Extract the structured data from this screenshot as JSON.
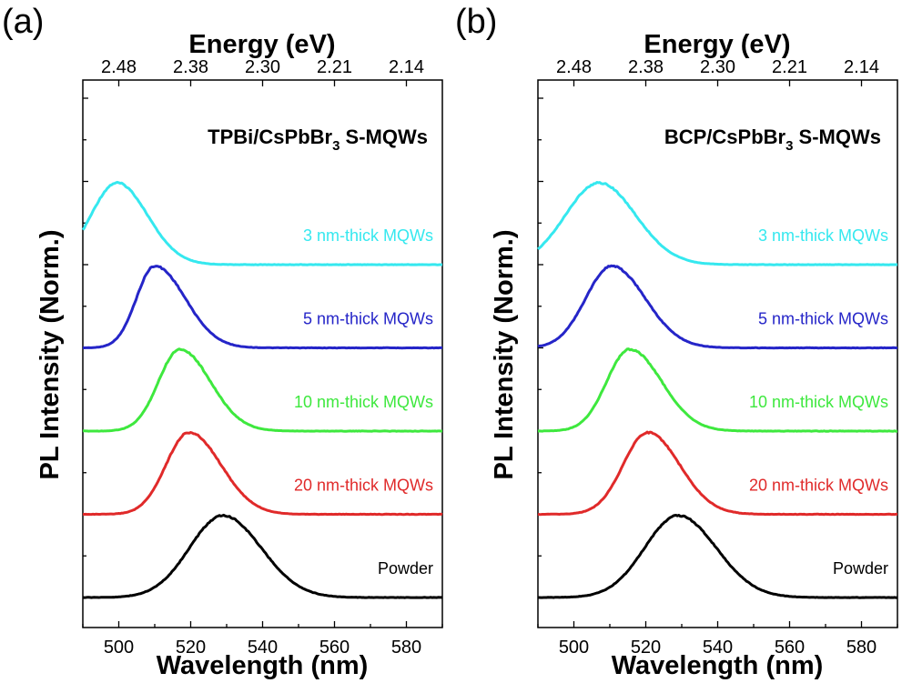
{
  "panels": [
    {
      "label": "(a)",
      "title_main": "TPBi/CsPbBr",
      "title_sub": "3",
      "title_suffix": " S-MQWs",
      "chart_data": {
        "type": "line",
        "xlabel": "Wavelength (nm)",
        "ylabel": "PL Intensity (Norm.)",
        "top_xlabel": "Energy (eV)",
        "xlim": [
          490,
          590
        ],
        "x_ticks": [
          500,
          520,
          540,
          560,
          580
        ],
        "top_ticks": [
          {
            "wavelength": 500,
            "label": "2.48"
          },
          {
            "wavelength": 520,
            "label": "2.38"
          },
          {
            "wavelength": 540,
            "label": "2.30"
          },
          {
            "wavelength": 560,
            "label": "2.21"
          },
          {
            "wavelength": 580,
            "label": "2.14"
          }
        ],
        "series": [
          {
            "name": "3 nm-thick MQWs",
            "color": "#35e8ef",
            "peak_nm": 499.5,
            "fwhm_left": 17,
            "fwhm_right": 20,
            "offset": 4
          },
          {
            "name": "5 nm-thick MQWs",
            "color": "#2525c8",
            "peak_nm": 510,
            "fwhm_left": 12,
            "fwhm_right": 20,
            "offset": 3
          },
          {
            "name": "10 nm-thick MQWs",
            "color": "#3ee83e",
            "peak_nm": 517,
            "fwhm_left": 14,
            "fwhm_right": 20,
            "offset": 2
          },
          {
            "name": "20 nm-thick MQWs",
            "color": "#e02a2a",
            "peak_nm": 519.5,
            "fwhm_left": 15,
            "fwhm_right": 21,
            "offset": 1
          },
          {
            "name": "Powder",
            "color": "#000000",
            "peak_nm": 529,
            "fwhm_left": 22,
            "fwhm_right": 25,
            "offset": 0
          }
        ]
      }
    },
    {
      "label": "(b)",
      "title_main": "BCP/CsPbBr",
      "title_sub": "3",
      "title_suffix": " S-MQWs",
      "chart_data": {
        "type": "line",
        "xlabel": "Wavelength (nm)",
        "ylabel": "PL Intensity (Norm.)",
        "top_xlabel": "Energy (eV)",
        "xlim": [
          490,
          590
        ],
        "x_ticks": [
          500,
          520,
          540,
          560,
          580
        ],
        "top_ticks": [
          {
            "wavelength": 500,
            "label": "2.48"
          },
          {
            "wavelength": 520,
            "label": "2.38"
          },
          {
            "wavelength": 540,
            "label": "2.30"
          },
          {
            "wavelength": 560,
            "label": "2.21"
          },
          {
            "wavelength": 580,
            "label": "2.14"
          }
        ],
        "series": [
          {
            "name": "3 nm-thick MQWs",
            "color": "#35e8ef",
            "peak_nm": 507,
            "fwhm_left": 22,
            "fwhm_right": 24,
            "offset": 4
          },
          {
            "name": "5 nm-thick MQWs",
            "color": "#2525c8",
            "peak_nm": 510.5,
            "fwhm_left": 17,
            "fwhm_right": 22,
            "offset": 3
          },
          {
            "name": "10 nm-thick MQWs",
            "color": "#3ee83e",
            "peak_nm": 515.5,
            "fwhm_left": 15,
            "fwhm_right": 21,
            "offset": 2
          },
          {
            "name": "20 nm-thick MQWs",
            "color": "#e02a2a",
            "peak_nm": 520.5,
            "fwhm_left": 16,
            "fwhm_right": 21,
            "offset": 1
          },
          {
            "name": "Powder",
            "color": "#000000",
            "peak_nm": 529,
            "fwhm_left": 22,
            "fwhm_right": 25,
            "offset": 0
          }
        ]
      }
    }
  ]
}
